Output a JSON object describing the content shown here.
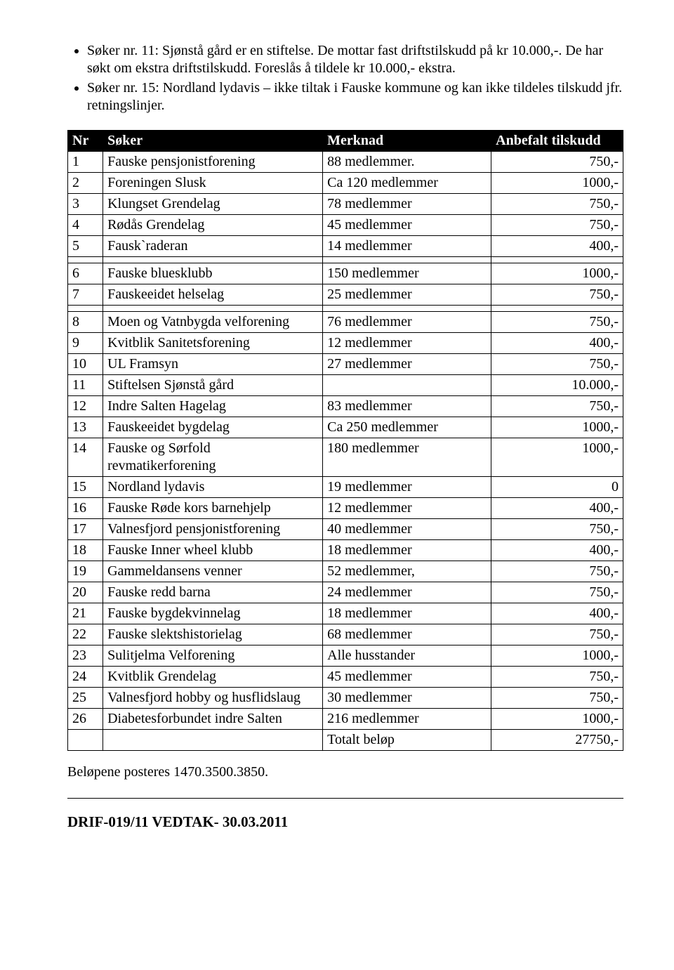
{
  "bullets": [
    "Søker nr. 11: Sjønstå gård er en stiftelse. De mottar fast driftstilskudd på kr 10.000,-. De har søkt om ekstra driftstilskudd. Foreslås å tildele kr 10.000,- ekstra.",
    "Søker nr. 15: Nordland lydavis – ikke tiltak i Fauske kommune og kan ikke tildeles tilskudd jfr. retningslinjer."
  ],
  "table": {
    "header": {
      "nr": "Nr",
      "soker": "Søker",
      "merknad": "Merknad",
      "amount": "Anbefalt tilskudd"
    },
    "header_bg": "#000000",
    "header_fg": "#ffffff",
    "rows": [
      {
        "nr": "1",
        "soker": "Fauske pensjonistforening",
        "merknad": "88 medlemmer.",
        "amount": "750,-"
      },
      {
        "nr": "2",
        "soker": "Foreningen Slusk",
        "merknad": "Ca 120 medlemmer",
        "amount": "1000,-"
      },
      {
        "nr": "3",
        "soker": "Klungset Grendelag",
        "merknad": "78 medlemmer",
        "amount": "750,-"
      },
      {
        "nr": "4",
        "soker": "Rødås Grendelag",
        "merknad": "45 medlemmer",
        "amount": "750,-"
      },
      {
        "nr": "5",
        "soker": "Fausk`raderan",
        "merknad": "14 medlemmer",
        "amount": "400,-"
      },
      {
        "sep": true
      },
      {
        "nr": "6",
        "soker": "Fauske bluesklubb",
        "merknad": "150 medlemmer",
        "amount": "1000,-"
      },
      {
        "nr": "7",
        "soker": "Fauskeeidet helselag",
        "merknad": "25 medlemmer",
        "amount": "750,-"
      },
      {
        "sep": true
      },
      {
        "nr": "8",
        "soker": "Moen og Vatnbygda velforening",
        "merknad": "76 medlemmer",
        "amount": "750,-"
      },
      {
        "nr": "9",
        "soker": "Kvitblik Sanitetsforening",
        "merknad": "12 medlemmer",
        "amount": "400,-"
      },
      {
        "nr": "10",
        "soker": "UL Framsyn",
        "merknad": "27 medlemmer",
        "amount": "750,-"
      },
      {
        "nr": "11",
        "soker": "Stiftelsen Sjønstå gård",
        "merknad": "",
        "amount": "10.000,-"
      },
      {
        "nr": "12",
        "soker": "Indre Salten Hagelag",
        "merknad": "83 medlemmer",
        "amount": "750,-"
      },
      {
        "nr": "13",
        "soker": "Fauskeeidet bygdelag",
        "merknad": "Ca 250 medlemmer",
        "amount": "1000,-"
      },
      {
        "nr": "14",
        "soker": "Fauske og Sørfold revmatikerforening",
        "merknad": "180  medlemmer",
        "amount": "1000,-"
      },
      {
        "nr": "15",
        "soker": "Nordland lydavis",
        "merknad": "19 medlemmer",
        "amount": "0"
      },
      {
        "nr": "16",
        "soker": "Fauske Røde kors barnehjelp",
        "merknad": "12 medlemmer",
        "amount": "400,-"
      },
      {
        "nr": "17",
        "soker": "Valnesfjord pensjonistforening",
        "merknad": "40 medlemmer",
        "amount": "750,-"
      },
      {
        "nr": "18",
        "soker": "Fauske Inner wheel klubb",
        "merknad": "18 medlemmer",
        "amount": "400,-"
      },
      {
        "nr": "19",
        "soker": "Gammeldansens venner",
        "merknad": "52 medlemmer,",
        "amount": "750,-"
      },
      {
        "nr": "20",
        "soker": "Fauske redd barna",
        "merknad": "24 medlemmer",
        "amount": "750,-"
      },
      {
        "nr": "21",
        "soker": "Fauske bygdekvinnelag",
        "merknad": "18 medlemmer",
        "amount": "400,-"
      },
      {
        "nr": "22",
        "soker": "Fauske slektshistorielag",
        "merknad": "68 medlemmer",
        "amount": "750,-"
      },
      {
        "nr": "23",
        "soker": "Sulitjelma Velforening",
        "merknad": "Alle husstander",
        "amount": "1000,-"
      },
      {
        "nr": "24",
        "soker": "Kvitblik Grendelag",
        "merknad": "45 medlemmer",
        "amount": "750,-"
      },
      {
        "nr": "25",
        "soker": "Valnesfjord hobby og husflidslaug",
        "merknad": "30 medlemmer",
        "amount": "750,-"
      },
      {
        "nr": "26",
        "soker": "Diabetesforbundet indre Salten",
        "merknad": "216 medlemmer",
        "amount": "1000,-"
      },
      {
        "nr": "",
        "soker": "",
        "merknad": "Totalt beløp",
        "amount": "27750,-"
      }
    ]
  },
  "footer_note": "Beløpene posteres 1470.3500.3850.",
  "vedtak": "DRIF-019/11 VEDTAK-  30.03.2011"
}
